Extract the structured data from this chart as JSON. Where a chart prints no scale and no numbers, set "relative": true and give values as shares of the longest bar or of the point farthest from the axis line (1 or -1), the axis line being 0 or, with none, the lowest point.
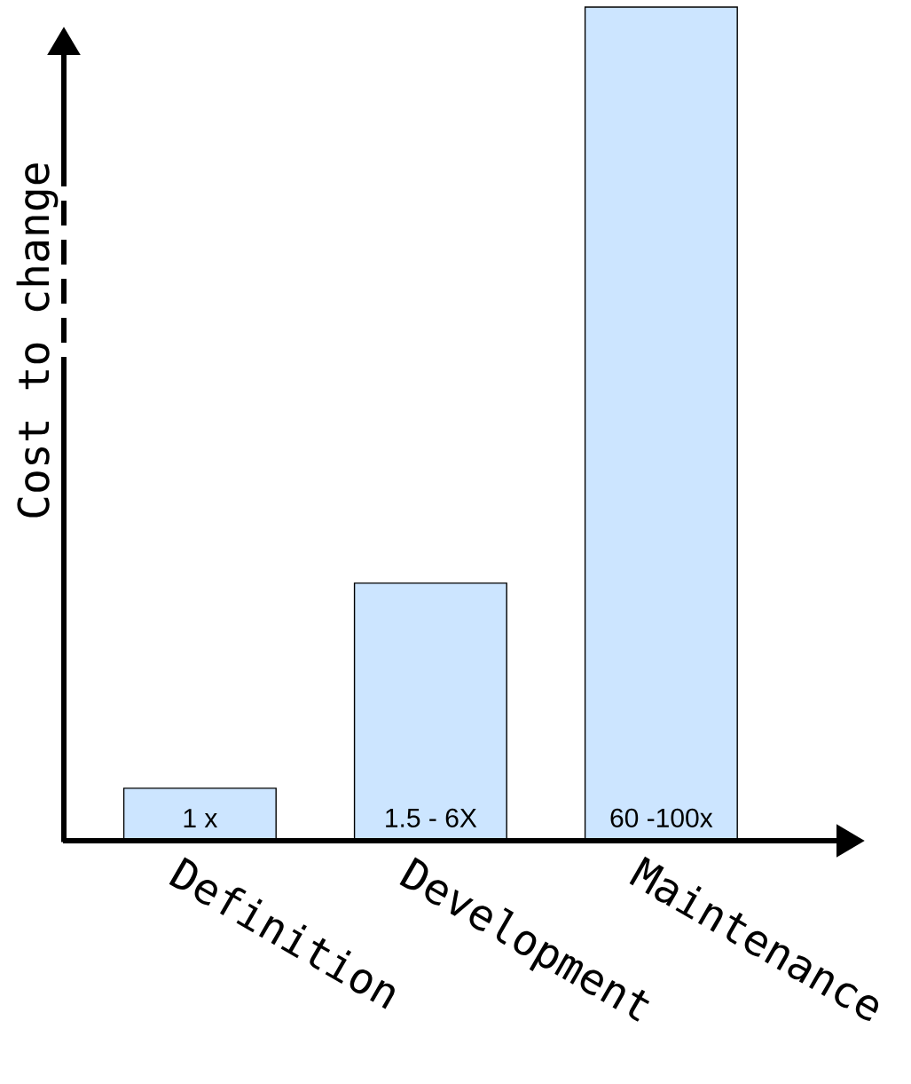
{
  "chart_data": {
    "type": "bar",
    "ylabel": "Cost to change",
    "categories": [
      "Definition",
      "Development",
      "Maintenance"
    ],
    "values": [
      0.063,
      0.309,
      1
    ],
    "color": "#cce5ff",
    "relative": true,
    "annotations": [
      {
        "text": "1 x",
        "x": "Definition",
        "y": 0
      },
      {
        "text": "1.5 - 6X",
        "x": "Development",
        "y": 0
      },
      {
        "text": "60 -100x",
        "x": "Maintenance",
        "y": 0
      }
    ]
  }
}
